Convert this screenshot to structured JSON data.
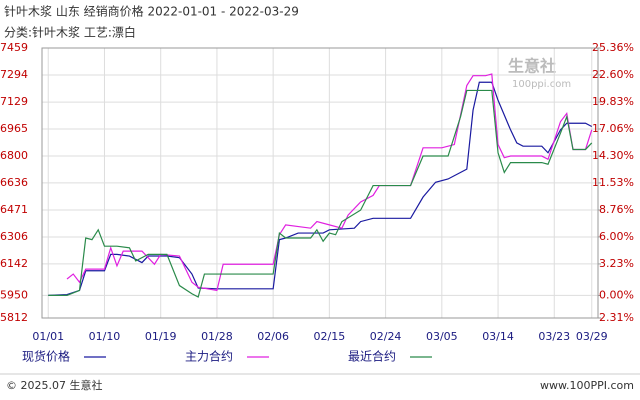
{
  "chart_data": {
    "type": "line",
    "title": "针叶木浆 山东 经销商价格 2022-01-01 - 2022-03-29",
    "subtitle": "分类:针叶木浆 工艺:漂白",
    "watermark": "生意社",
    "watermark_url": "100ppi.com",
    "footer_left": "© 2025.07 生意社",
    "footer_right": "www.100PPI.com",
    "xlim": [
      -1,
      88
    ],
    "xticks": [
      {
        "value": 0,
        "label": "01/01"
      },
      {
        "value": 9,
        "label": "01/10"
      },
      {
        "value": 18,
        "label": "01/19"
      },
      {
        "value": 27,
        "label": "01/28"
      },
      {
        "value": 36,
        "label": "02/06"
      },
      {
        "value": 45,
        "label": "02/15"
      },
      {
        "value": 54,
        "label": "02/24"
      },
      {
        "value": 63,
        "label": "03/05"
      },
      {
        "value": 72,
        "label": "03/14"
      },
      {
        "value": 81,
        "label": "03/23"
      },
      {
        "value": 87,
        "label": "03/29"
      }
    ],
    "ylim": [
      5812,
      7459
    ],
    "yticks": [
      5812,
      5950,
      6142,
      6306,
      6471,
      6636,
      6800,
      6965,
      7129,
      7294,
      7459
    ],
    "y2lim": [
      -2.31,
      25.36
    ],
    "y2ticks": [
      {
        "value": -2.31,
        "label": "-2.31%"
      },
      {
        "value": 0,
        "label": "0.00%"
      },
      {
        "value": 3.23,
        "label": "3.23%"
      },
      {
        "value": 6.0,
        "label": "6.00%"
      },
      {
        "value": 8.76,
        "label": "8.76%"
      },
      {
        "value": 11.53,
        "label": "11.53%"
      },
      {
        "value": 14.3,
        "label": "14.30%"
      },
      {
        "value": 17.06,
        "label": "17.06%"
      },
      {
        "value": 19.83,
        "label": "19.83%"
      },
      {
        "value": 22.6,
        "label": "22.60%"
      },
      {
        "value": 25.36,
        "label": "25.36%"
      }
    ],
    "grid": true,
    "series": [
      {
        "name": "现货价格",
        "color": "#1a1aa0",
        "x": [
          0,
          3,
          5,
          6,
          9,
          10,
          11,
          13,
          15,
          16,
          19,
          21,
          23,
          24,
          27,
          36,
          37,
          38,
          40,
          44,
          45,
          49,
          50,
          52,
          58,
          60,
          62,
          64,
          67,
          68,
          69,
          71,
          72,
          74,
          75,
          76,
          79,
          80,
          82,
          83,
          84,
          86,
          87
        ],
        "values": [
          5950,
          5955,
          5980,
          6100,
          6100,
          6200,
          6200,
          6190,
          6150,
          6190,
          6190,
          6180,
          6080,
          5995,
          5990,
          5990,
          6290,
          6300,
          6330,
          6330,
          6350,
          6360,
          6400,
          6420,
          6420,
          6550,
          6640,
          6660,
          6720,
          7080,
          7250,
          7250,
          7140,
          6960,
          6880,
          6860,
          6860,
          6820,
          6960,
          7000,
          7000,
          7000,
          6980
        ]
      },
      {
        "name": "主力合约",
        "color": "#e020e0",
        "x": [
          3,
          4,
          5,
          6,
          9,
          10,
          11,
          12,
          15,
          17,
          18,
          21,
          23,
          24,
          27,
          28,
          36,
          37,
          38,
          42,
          43,
          45,
          47,
          48,
          50,
          52,
          53,
          58,
          60,
          63,
          65,
          66,
          67,
          68,
          70,
          71,
          72,
          73,
          74,
          79,
          80,
          82,
          83,
          84,
          86,
          87
        ],
        "values": [
          6050,
          6080,
          6030,
          6110,
          6110,
          6240,
          6130,
          6220,
          6220,
          6140,
          6200,
          6190,
          6030,
          6000,
          5980,
          6140,
          6140,
          6320,
          6380,
          6360,
          6400,
          6380,
          6360,
          6440,
          6520,
          6560,
          6620,
          6620,
          6850,
          6850,
          6870,
          7050,
          7230,
          7290,
          7290,
          7300,
          6870,
          6790,
          6800,
          6800,
          6780,
          7010,
          7060,
          6840,
          6840,
          6960
        ]
      },
      {
        "name": "最近合约",
        "color": "#2a8a4a",
        "x": [
          0,
          3,
          5,
          6,
          7,
          8,
          9,
          11,
          13,
          14,
          16,
          19,
          21,
          23,
          24,
          25,
          36,
          37,
          38,
          42,
          43,
          44,
          45,
          46,
          47,
          50,
          52,
          58,
          60,
          64,
          66,
          67,
          71,
          72,
          73,
          74,
          79,
          80,
          82,
          83,
          84,
          86,
          87
        ],
        "values": [
          5950,
          5950,
          5980,
          6300,
          6290,
          6350,
          6250,
          6250,
          6240,
          6160,
          6200,
          6200,
          6010,
          5960,
          5940,
          6080,
          6080,
          6330,
          6300,
          6300,
          6350,
          6280,
          6330,
          6320,
          6400,
          6470,
          6620,
          6620,
          6800,
          6800,
          7040,
          7200,
          7200,
          6820,
          6700,
          6760,
          6760,
          6750,
          6940,
          7040,
          6840,
          6840,
          6880
        ]
      }
    ]
  }
}
